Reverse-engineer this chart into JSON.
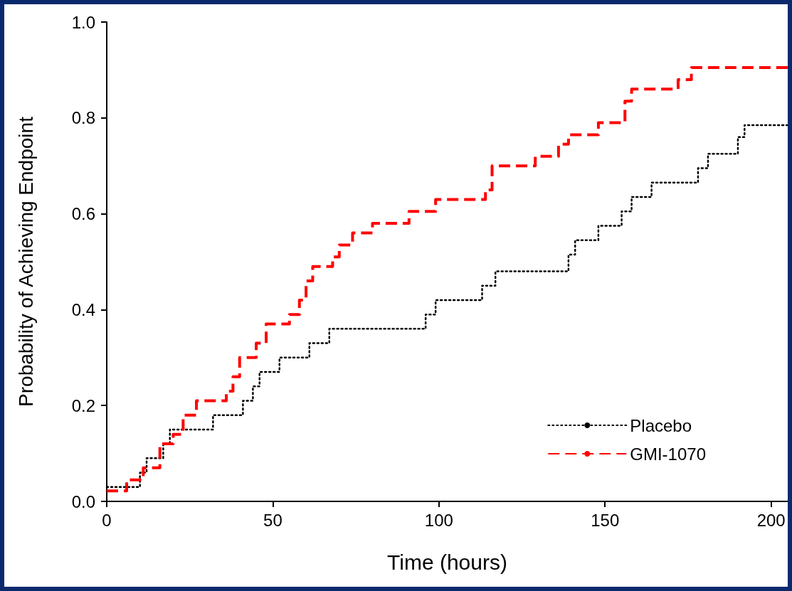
{
  "chart_data": {
    "type": "step",
    "xlabel": "Time (hours)",
    "ylabel": "Probability of Achieving Endpoint",
    "xlim": [
      0,
      205
    ],
    "xticks": [
      0,
      50,
      100,
      150,
      200
    ],
    "ylim": [
      0,
      1
    ],
    "yticks": [
      {
        "value": 0,
        "label": "0.0"
      },
      {
        "value": 0.2,
        "label": "0.2"
      },
      {
        "value": 0.4,
        "label": "0.4"
      },
      {
        "value": 0.6,
        "label": "0.6"
      },
      {
        "value": 0.8,
        "label": "0.8"
      },
      {
        "value": 1,
        "label": "1.0"
      }
    ],
    "grid": false,
    "legend": "bottom right",
    "marker": "none",
    "series": [
      {
        "name": "Placebo",
        "color": "#000000",
        "line_style": "dotted",
        "x": [
          0,
          10,
          12,
          17,
          19,
          32,
          41,
          44,
          46,
          52,
          61,
          67,
          96,
          99,
          113,
          117,
          139,
          141,
          148,
          155,
          158,
          164,
          178,
          181,
          190,
          192,
          205
        ],
        "values": [
          0.03,
          0.06,
          0.09,
          0.12,
          0.15,
          0.18,
          0.21,
          0.24,
          0.27,
          0.3,
          0.33,
          0.36,
          0.39,
          0.42,
          0.45,
          0.48,
          0.515,
          0.545,
          0.575,
          0.605,
          0.635,
          0.665,
          0.695,
          0.725,
          0.76,
          0.785,
          0.785
        ]
      },
      {
        "name": "GMI-1070",
        "color": "#ff0000",
        "line_style": "dashed",
        "x": [
          0,
          6,
          11,
          16,
          20,
          23,
          27,
          36,
          38,
          40,
          45,
          48,
          55,
          58,
          60,
          62,
          68,
          70,
          74,
          80,
          91,
          99,
          114,
          116,
          129,
          136,
          139,
          148,
          156,
          158,
          172,
          176,
          205
        ],
        "values": [
          0.022,
          0.045,
          0.07,
          0.12,
          0.14,
          0.18,
          0.21,
          0.23,
          0.26,
          0.3,
          0.33,
          0.37,
          0.39,
          0.42,
          0.46,
          0.49,
          0.51,
          0.535,
          0.56,
          0.58,
          0.605,
          0.63,
          0.65,
          0.7,
          0.72,
          0.745,
          0.765,
          0.79,
          0.835,
          0.86,
          0.88,
          0.905,
          0.905
        ]
      }
    ]
  }
}
